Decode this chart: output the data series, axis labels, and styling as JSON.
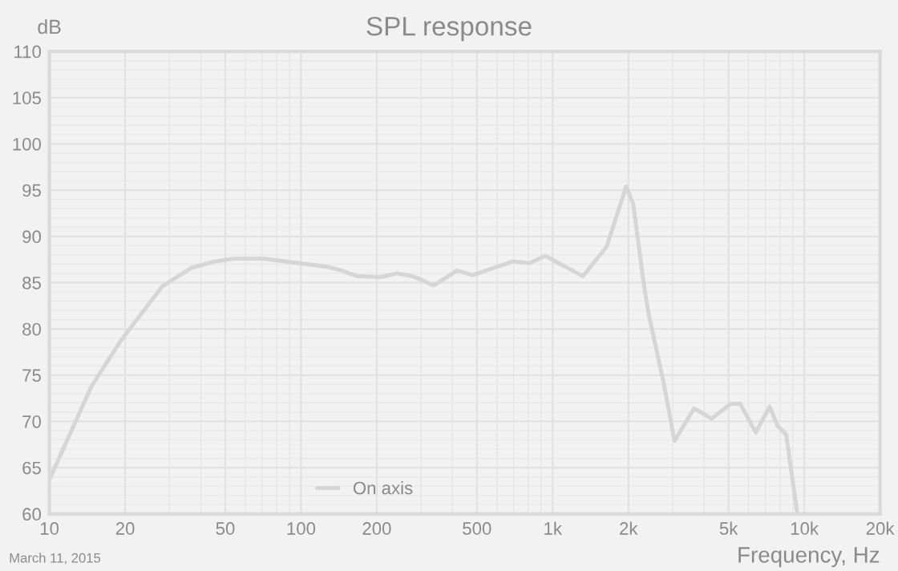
{
  "chart_data": {
    "type": "line",
    "title": "SPL response",
    "xlabel": "Frequency, Hz",
    "ylabel": "dB",
    "annotations": [
      "March 11, 2015"
    ],
    "series": [
      {
        "name": "On axis",
        "color": "#d6d6d6",
        "x": [
          10,
          14.7,
          19.2,
          28.1,
          36.7,
          45.6,
          54,
          71,
          87,
          128,
          145,
          167,
          208,
          240,
          278,
          337,
          417,
          480,
          697,
          807,
          934,
          1320,
          1640,
          1960,
          2090,
          2320,
          2420,
          2750,
          3050,
          3650,
          4280,
          5100,
          5560,
          6420,
          7280,
          7840,
          8470,
          9350
        ],
        "values": [
          63.7,
          73.8,
          78.7,
          84.6,
          86.6,
          87.3,
          87.6,
          87.6,
          87.3,
          86.7,
          86.3,
          85.7,
          85.6,
          86.0,
          85.7,
          84.7,
          86.3,
          85.8,
          87.3,
          87.1,
          87.9,
          85.7,
          88.9,
          95.4,
          93.5,
          84.2,
          81.3,
          74.4,
          67.9,
          71.4,
          70.3,
          71.9,
          71.9,
          68.8,
          71.6,
          69.5,
          68.6,
          60.3
        ]
      }
    ],
    "log": "x",
    "xlim": [
      10,
      20000
    ],
    "ylim": [
      60,
      110
    ],
    "xticks": [
      10,
      20,
      50,
      100,
      200,
      500,
      {
        "value": 1000,
        "label": "1k"
      },
      {
        "value": 2000,
        "label": "2k"
      },
      {
        "value": 5000,
        "label": "5k"
      },
      {
        "value": 10000,
        "label": "10k"
      },
      {
        "value": 20000,
        "label": "20k"
      }
    ],
    "yticks": [
      60,
      65,
      70,
      75,
      80,
      85,
      90,
      95,
      100,
      105,
      110
    ],
    "grid": true,
    "legend": "bottom",
    "marker": "none",
    "line_style": "solid"
  }
}
